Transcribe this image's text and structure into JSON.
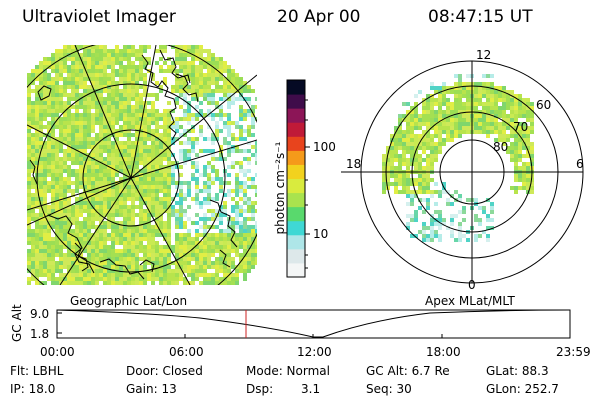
{
  "header": {
    "instrument": "Ultraviolet Imager",
    "date": "20 Apr 00",
    "time": "08:47:15 UT"
  },
  "colors": {
    "colorbar": [
      "#f4f6f6",
      "#dde8ea",
      "#aee6e8",
      "#3fd8d4",
      "#59d96d",
      "#a9e34e",
      "#d9eb3e",
      "#f2d21e",
      "#f59a1a",
      "#e8441d",
      "#c01a38",
      "#8c1557",
      "#3f0c4a",
      "#050a24"
    ],
    "aurora": [
      "#cfe959",
      "#b8e44c",
      "#9bde55",
      "#e1ee45",
      "#80d66c",
      "#c9ea52",
      "#a4e052"
    ],
    "aurora_sparse": [
      "#67d6a8",
      "#4fd3c6",
      "#b6ece8",
      "#d5f0ee",
      "#8cd99a"
    ],
    "time_marker": "#cc2222"
  },
  "colorbar": {
    "unit_label": "photon cm⁻²s⁻¹",
    "tick_100": "100",
    "tick_10": "10"
  },
  "left_map": {
    "caption": "Geographic Lat/Lon"
  },
  "right_map": {
    "caption": "Apex MLat/MLT",
    "mlt_top": "12",
    "mlt_left": "18",
    "mlt_right": "6",
    "mlt_bottom": "0",
    "lat_60": "60",
    "lat_70": "70",
    "lat_80": "80"
  },
  "altitude_plot": {
    "ylabel": "GC Alt",
    "ytick_top": "9.0",
    "ytick_bottom": "1.8",
    "xticks": [
      "00:00",
      "06:00",
      "12:00",
      "18:00",
      "23:59"
    ]
  },
  "info": {
    "filter": "Flt: LBHL",
    "ip": "IP: 18.0",
    "door": "Door: Closed",
    "gain": "Gain: 13",
    "mode": "Mode: Normal",
    "dsp_label": "Dsp:",
    "dsp_value": "3.1",
    "gc_alt": "GC Alt: 6.7 Re",
    "seq": "Seq: 30",
    "glat": "GLat: 88.3",
    "glon": "GLon: 252.7"
  }
}
